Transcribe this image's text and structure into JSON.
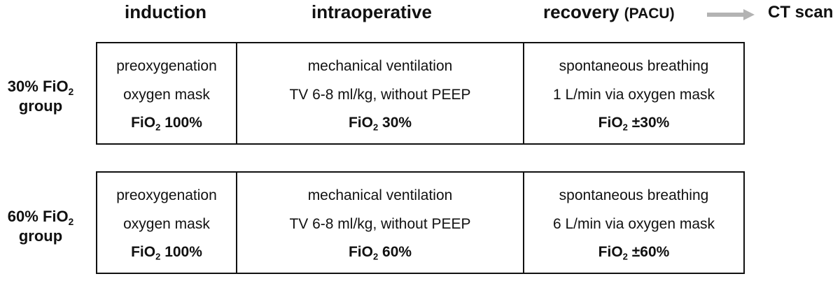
{
  "headers": {
    "induction": "induction",
    "intraoperative": "intraoperative",
    "recovery": "recovery",
    "recovery_paren": "(PACU)",
    "ct_scan": "CT scan"
  },
  "colors": {
    "arrow": "#b3b3b3",
    "border": "#111111",
    "text": "#111111"
  },
  "groups": [
    {
      "label_prefix": "30% FiO",
      "label_sub": "2",
      "label_suffix": "group",
      "induction": {
        "line1": "preoxygenation",
        "line2": "oxygen mask",
        "fio_prefix": "FiO",
        "fio_sub": "2",
        "fio_value": "100%"
      },
      "intraoperative": {
        "line1": "mechanical ventilation",
        "line2": "TV 6-8 ml/kg, without PEEP",
        "fio_prefix": "FiO",
        "fio_sub": "2",
        "fio_value": "30%"
      },
      "recovery": {
        "line1": "spontaneous breathing",
        "line2": "1 L/min via oxygen mask",
        "fio_prefix": "FiO",
        "fio_sub": "2",
        "fio_value": "±30%"
      }
    },
    {
      "label_prefix": "60% FiO",
      "label_sub": "2",
      "label_suffix": "group",
      "induction": {
        "line1": "preoxygenation",
        "line2": "oxygen mask",
        "fio_prefix": "FiO",
        "fio_sub": "2",
        "fio_value": "100%"
      },
      "intraoperative": {
        "line1": "mechanical ventilation",
        "line2": "TV 6-8 ml/kg, without PEEP",
        "fio_prefix": "FiO",
        "fio_sub": "2",
        "fio_value": "60%"
      },
      "recovery": {
        "line1": "spontaneous breathing",
        "line2": "6 L/min via oxygen mask",
        "fio_prefix": "FiO",
        "fio_sub": "2",
        "fio_value": "±60%"
      }
    }
  ]
}
